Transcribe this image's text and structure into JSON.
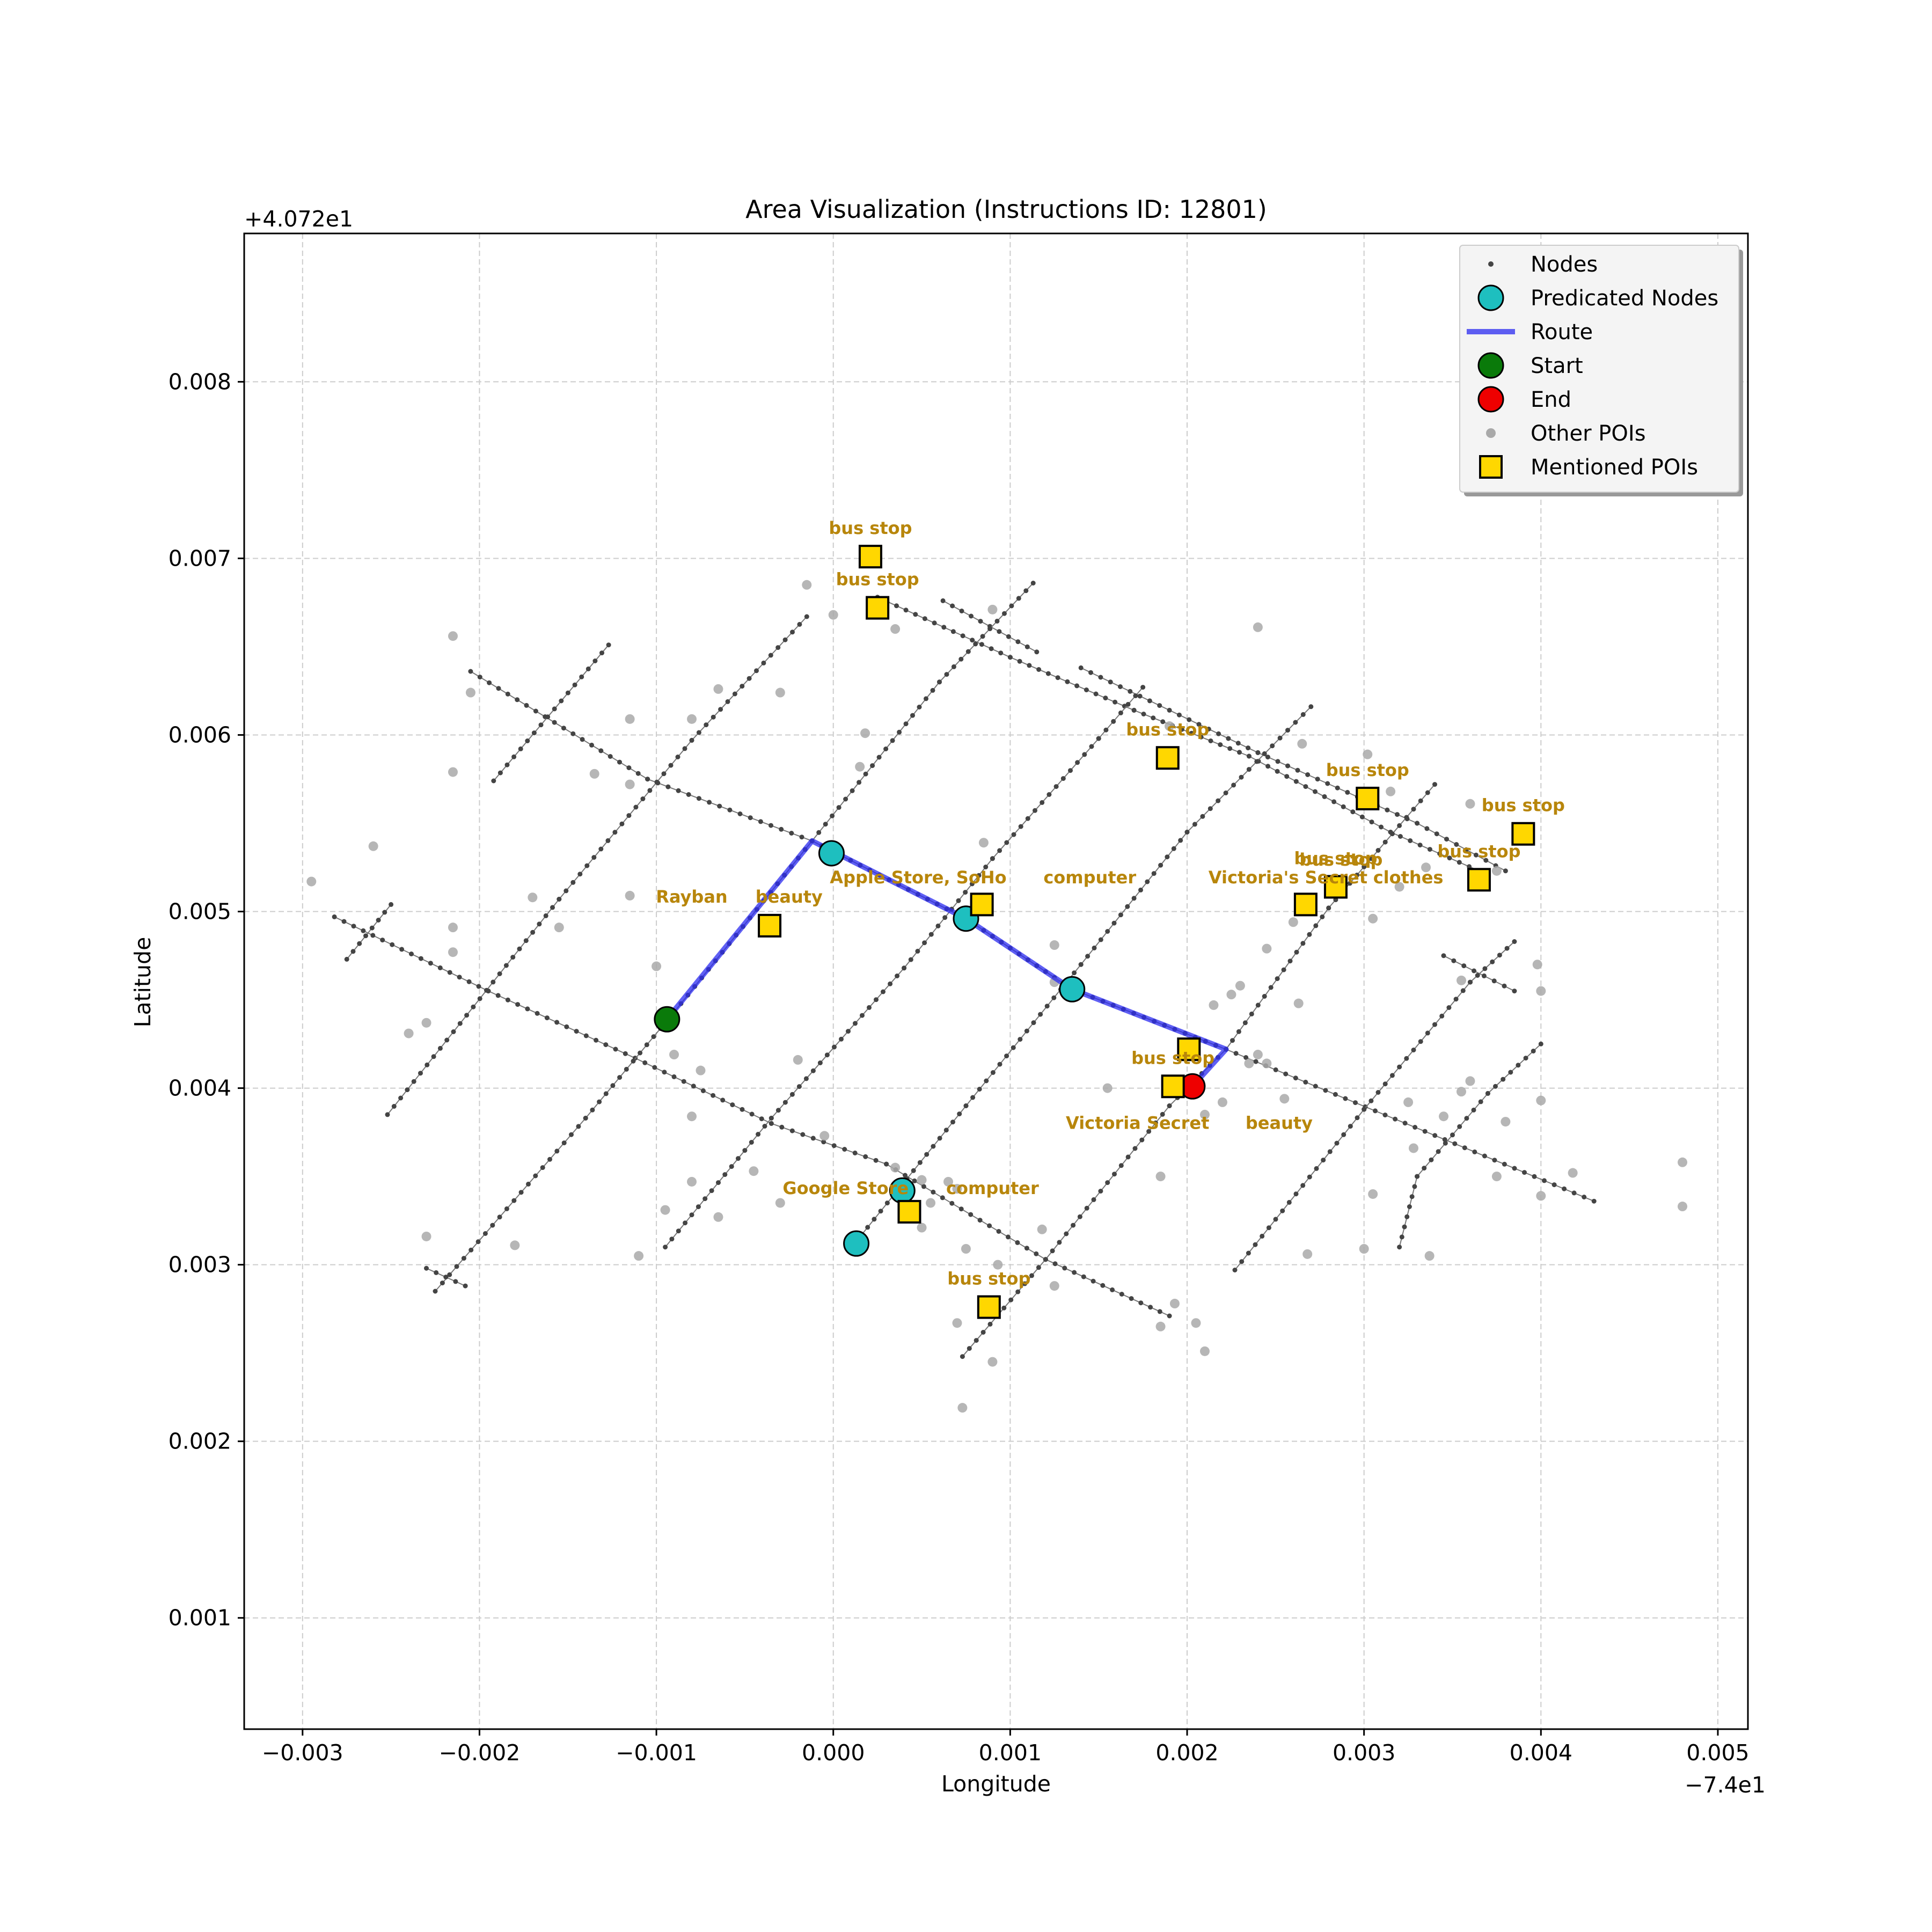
{
  "chart_data": {
    "type": "scatter",
    "title": "Area Visualization (Instructions ID: 12801)",
    "xlabel": "Longitude",
    "ylabel": "Latitude",
    "x_offset_label": "−7.4e1",
    "y_offset_label": "+4.072e1",
    "xlim": [
      -0.00333,
      0.00517
    ],
    "ylim": [
      0.00037,
      0.00884
    ],
    "x_ticks": [
      -0.003,
      -0.002,
      -0.001,
      0.0,
      0.001,
      0.002,
      0.003,
      0.004,
      0.005
    ],
    "x_tick_labels": [
      "−0.003",
      "−0.002",
      "−0.001",
      "0.000",
      "0.001",
      "0.002",
      "0.003",
      "0.004",
      "0.005"
    ],
    "y_ticks": [
      0.001,
      0.002,
      0.003,
      0.004,
      0.005,
      0.006,
      0.007,
      0.008
    ],
    "y_tick_labels": [
      "0.001",
      "0.002",
      "0.003",
      "0.004",
      "0.005",
      "0.006",
      "0.007",
      "0.008"
    ],
    "grid": true,
    "legend_position": "top-right",
    "legend": [
      {
        "label": "Nodes",
        "marker": "node"
      },
      {
        "label": "Predicated Nodes",
        "marker": "pred"
      },
      {
        "label": "Route",
        "marker": "route"
      },
      {
        "label": "Start",
        "marker": "start"
      },
      {
        "label": "End",
        "marker": "end"
      },
      {
        "label": "Other POIs",
        "marker": "poi"
      },
      {
        "label": "Mentioned POIs",
        "marker": "mentioned"
      }
    ],
    "colors": {
      "node": "#444444",
      "predicated": "#1ebfbf",
      "route": "#2b2bf0",
      "start": "#0a7a0a",
      "end": "#ee0000",
      "other_poi": "#a9a9a9",
      "mentioned_poi": "#ffd700",
      "poi_label": "#b8860b",
      "grid": "#cccccc"
    },
    "streets": [
      [
        [
          -0.00205,
          0.00636
        ],
        [
          -0.00105,
          0.00575
        ],
        [
          -0.00012,
          0.0054
        ],
        [
          0.00075,
          0.00496
        ],
        [
          0.00135,
          0.00456
        ],
        [
          0.00222,
          0.00422
        ],
        [
          0.0043,
          0.00336
        ]
      ],
      [
        [
          -0.00282,
          0.00497
        ],
        [
          -0.00195,
          0.00455
        ],
        [
          -0.00112,
          0.00417
        ],
        [
          -0.00035,
          0.0038
        ],
        [
          0.0003,
          0.00357
        ],
        [
          0.0012,
          0.00303
        ],
        [
          0.0019,
          0.00271
        ]
      ],
      [
        [
          0.00025,
          0.00678
        ],
        [
          0.001,
          0.00644
        ],
        [
          0.0017,
          0.00614
        ],
        [
          0.00235,
          0.00588
        ],
        [
          0.00315,
          0.00545
        ],
        [
          0.00365,
          0.00523
        ]
      ],
      [
        [
          0.0014,
          0.00638
        ],
        [
          0.0024,
          0.0059
        ],
        [
          0.0033,
          0.0055
        ],
        [
          0.0038,
          0.00523
        ]
      ],
      [
        [
          0.00062,
          0.00676
        ],
        [
          0.00115,
          0.00647
        ]
      ],
      [
        [
          0.00345,
          0.00475
        ],
        [
          0.00385,
          0.00455
        ]
      ],
      [
        [
          -0.00192,
          0.00574
        ],
        [
          -0.00127,
          0.00651
        ]
      ],
      [
        [
          -0.00252,
          0.00385
        ],
        [
          -0.00155,
          0.00507
        ],
        [
          -0.0008,
          0.00597
        ],
        [
          -0.00015,
          0.00667
        ]
      ],
      [
        [
          -0.00275,
          0.00473
        ],
        [
          -0.0025,
          0.00504
        ]
      ],
      [
        [
          -0.00225,
          0.00285
        ],
        [
          -0.0014,
          0.00383
        ],
        [
          -0.0009,
          0.00443
        ],
        [
          -0.00012,
          0.0054
        ],
        [
          0.0006,
          0.0063
        ],
        [
          0.00113,
          0.00686
        ]
      ],
      [
        [
          -0.00095,
          0.0031
        ],
        [
          -0.00035,
          0.00383
        ],
        [
          0.0004,
          0.00468
        ],
        [
          0.0009,
          0.0053
        ],
        [
          0.0015,
          0.00598
        ],
        [
          0.00175,
          0.00627
        ]
      ],
      [
        [
          0.00012,
          0.00312
        ],
        [
          0.00075,
          0.0039
        ],
        [
          0.0014,
          0.0047
        ],
        [
          0.002,
          0.00545
        ],
        [
          0.0027,
          0.00616
        ]
      ],
      [
        [
          0.00073,
          0.00248
        ],
        [
          0.0012,
          0.00303
        ],
        [
          0.0019,
          0.0039
        ],
        [
          0.00222,
          0.00422
        ],
        [
          0.0028,
          0.00502
        ],
        [
          0.0034,
          0.00572
        ]
      ],
      [
        [
          0.00227,
          0.00297
        ],
        [
          0.003,
          0.00388
        ],
        [
          0.0036,
          0.0046
        ],
        [
          0.00385,
          0.00483
        ]
      ],
      [
        [
          0.0032,
          0.0031
        ],
        [
          0.0033,
          0.0035
        ],
        [
          0.0037,
          0.00397
        ],
        [
          0.004,
          0.00425
        ]
      ],
      [
        [
          -0.0023,
          0.00298
        ],
        [
          -0.00208,
          0.00288
        ]
      ]
    ],
    "predicated_nodes": [
      {
        "x": -1e-05,
        "y": 0.00533
      },
      {
        "x": 0.00075,
        "y": 0.00496
      },
      {
        "x": 0.00135,
        "y": 0.00456
      },
      {
        "x": 0.00039,
        "y": 0.00342
      },
      {
        "x": 0.00013,
        "y": 0.00312
      }
    ],
    "route": [
      [
        -0.00094,
        0.00439
      ],
      [
        -0.00012,
        0.0054
      ],
      [
        0.00075,
        0.00496
      ],
      [
        0.00135,
        0.00456
      ],
      [
        0.00222,
        0.00422
      ],
      [
        0.00203,
        0.00401
      ]
    ],
    "start": {
      "x": -0.00094,
      "y": 0.00439
    },
    "end": {
      "x": 0.00203,
      "y": 0.00401
    },
    "other_pois": [
      [
        -0.00295,
        0.00517
      ],
      [
        -0.0026,
        0.00537
      ],
      [
        -0.00215,
        0.00656
      ],
      [
        -0.00205,
        0.00624
      ],
      [
        -0.00215,
        0.00579
      ],
      [
        -0.00215,
        0.00491
      ],
      [
        -0.00215,
        0.00477
      ],
      [
        -0.0024,
        0.00431
      ],
      [
        -0.0023,
        0.00437
      ],
      [
        -0.0023,
        0.00316
      ],
      [
        -0.0018,
        0.00311
      ],
      [
        -0.0017,
        0.00508
      ],
      [
        -0.00155,
        0.00491
      ],
      [
        -0.00135,
        0.00578
      ],
      [
        -0.00115,
        0.00609
      ],
      [
        -0.00115,
        0.00572
      ],
      [
        -0.00115,
        0.00509
      ],
      [
        -0.0011,
        0.00305
      ],
      [
        -0.001,
        0.00469
      ],
      [
        -0.00095,
        0.00331
      ],
      [
        -0.0009,
        0.00419
      ],
      [
        -0.0008,
        0.00609
      ],
      [
        -0.0008,
        0.00384
      ],
      [
        -0.0008,
        0.00347
      ],
      [
        -0.00075,
        0.0041
      ],
      [
        -0.00065,
        0.00626
      ],
      [
        -0.00065,
        0.00327
      ],
      [
        -0.00045,
        0.00353
      ],
      [
        -0.0003,
        0.00624
      ],
      [
        -0.0003,
        0.00335
      ],
      [
        -0.0002,
        0.00416
      ],
      [
        -0.00015,
        0.00685
      ],
      [
        -5e-05,
        0.00373
      ],
      [
        0.0,
        0.00668
      ],
      [
        0.00015,
        0.00582
      ],
      [
        0.00018,
        0.00601
      ],
      [
        0.00035,
        0.00355
      ],
      [
        0.00035,
        0.0066
      ],
      [
        0.0005,
        0.00348
      ],
      [
        0.0005,
        0.00321
      ],
      [
        0.00055,
        0.00335
      ],
      [
        0.00065,
        0.00347
      ],
      [
        0.0007,
        0.00343
      ],
      [
        0.0007,
        0.00267
      ],
      [
        0.00073,
        0.00219
      ],
      [
        0.00075,
        0.00309
      ],
      [
        0.00085,
        0.00539
      ],
      [
        0.0009,
        0.00671
      ],
      [
        0.0009,
        0.00245
      ],
      [
        0.00093,
        0.003
      ],
      [
        0.00118,
        0.0032
      ],
      [
        0.00125,
        0.00481
      ],
      [
        0.00125,
        0.0046
      ],
      [
        0.00125,
        0.00288
      ],
      [
        0.00155,
        0.004
      ],
      [
        0.00185,
        0.0035
      ],
      [
        0.00185,
        0.00265
      ],
      [
        0.0019,
        0.00605
      ],
      [
        0.00193,
        0.00278
      ],
      [
        0.00205,
        0.00267
      ],
      [
        0.0021,
        0.00385
      ],
      [
        0.0021,
        0.00251
      ],
      [
        0.00215,
        0.00447
      ],
      [
        0.0022,
        0.00392
      ],
      [
        0.00225,
        0.00453
      ],
      [
        0.0023,
        0.00458
      ],
      [
        0.00235,
        0.00414
      ],
      [
        0.0024,
        0.00419
      ],
      [
        0.0024,
        0.00661
      ],
      [
        0.00245,
        0.00479
      ],
      [
        0.00245,
        0.00414
      ],
      [
        0.00255,
        0.00394
      ],
      [
        0.0026,
        0.00494
      ],
      [
        0.00263,
        0.00448
      ],
      [
        0.00265,
        0.00595
      ],
      [
        0.00268,
        0.00306
      ],
      [
        0.003,
        0.00309
      ],
      [
        0.00302,
        0.00589
      ],
      [
        0.00305,
        0.00496
      ],
      [
        0.00305,
        0.0034
      ],
      [
        0.00315,
        0.00568
      ],
      [
        0.0032,
        0.00514
      ],
      [
        0.00325,
        0.00392
      ],
      [
        0.00328,
        0.00366
      ],
      [
        0.00335,
        0.00525
      ],
      [
        0.00345,
        0.00384
      ],
      [
        0.00337,
        0.00305
      ],
      [
        0.00355,
        0.00461
      ],
      [
        0.00355,
        0.00398
      ],
      [
        0.0036,
        0.00561
      ],
      [
        0.0036,
        0.00404
      ],
      [
        0.00375,
        0.0035
      ],
      [
        0.00375,
        0.00523
      ],
      [
        0.0038,
        0.00381
      ],
      [
        0.00398,
        0.0047
      ],
      [
        0.004,
        0.00455
      ],
      [
        0.004,
        0.00339
      ],
      [
        0.004,
        0.00393
      ],
      [
        0.00418,
        0.00352
      ],
      [
        0.0048,
        0.00358
      ],
      [
        0.0048,
        0.00333
      ]
    ],
    "mentioned_pois": [
      {
        "x": 0.00021,
        "y": 0.00701,
        "label": "bus stop"
      },
      {
        "x": 0.00025,
        "y": 0.00672,
        "label": "bus stop"
      },
      {
        "x": 0.00189,
        "y": 0.00587,
        "label": "bus stop"
      },
      {
        "x": 0.00302,
        "y": 0.00564,
        "label": "bus stop"
      },
      {
        "x": 0.0039,
        "y": 0.00544,
        "label": "bus stop"
      },
      {
        "x": 0.00365,
        "y": 0.00518,
        "label": "bus stop"
      },
      {
        "x": 0.00284,
        "y": 0.00514,
        "label": "bus stop"
      },
      {
        "x": 0.00267,
        "y": 0.00504,
        "label": ""
      },
      {
        "x": 0.00084,
        "y": 0.00504,
        "label": ""
      },
      {
        "x": -0.00036,
        "y": 0.00492,
        "label": ""
      },
      {
        "x": 0.00201,
        "y": 0.00422,
        "label": ""
      },
      {
        "x": 0.00192,
        "y": 0.00401,
        "label": "bus stop"
      },
      {
        "x": 0.00043,
        "y": 0.0033,
        "label": ""
      },
      {
        "x": 0.00088,
        "y": 0.00276,
        "label": "bus stop"
      }
    ],
    "annotations": [
      {
        "text": "Rayban",
        "x": -0.0008,
        "y": 0.00505
      },
      {
        "text": "beauty",
        "x": -0.00025,
        "y": 0.00505
      },
      {
        "text": "Apple Store, SoHo",
        "x": 0.00048,
        "y": 0.00516
      },
      {
        "text": "computer",
        "x": 0.00145,
        "y": 0.00516
      },
      {
        "text": "Victoria's Secret",
        "x": 0.00257,
        "y": 0.00516
      },
      {
        "text": "clothes",
        "x": 0.00325,
        "y": 0.00516
      },
      {
        "text": "bus stop",
        "x": 0.00287,
        "y": 0.00526
      },
      {
        "text": "Victoria Secret",
        "x": 0.00172,
        "y": 0.00377
      },
      {
        "text": "beauty",
        "x": 0.00252,
        "y": 0.00377
      },
      {
        "text": "Google Store",
        "x": 7e-05,
        "y": 0.0034
      },
      {
        "text": "computer",
        "x": 0.0009,
        "y": 0.0034
      }
    ]
  }
}
